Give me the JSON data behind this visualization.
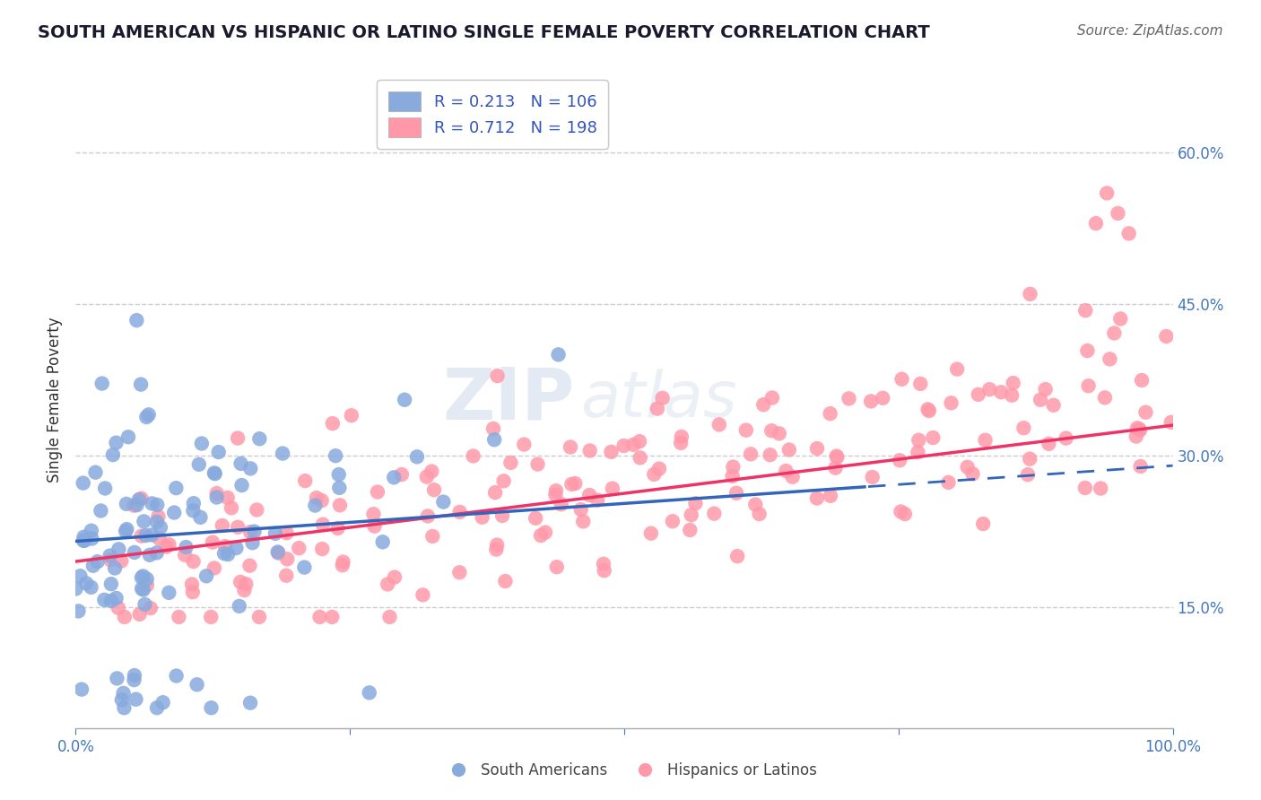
{
  "title": "SOUTH AMERICAN VS HISPANIC OR LATINO SINGLE FEMALE POVERTY CORRELATION CHART",
  "source": "Source: ZipAtlas.com",
  "ylabel": "Single Female Poverty",
  "yticks": [
    0.15,
    0.3,
    0.45,
    0.6
  ],
  "ytick_labels": [
    "15.0%",
    "30.0%",
    "45.0%",
    "60.0%"
  ],
  "xlim": [
    0.0,
    1.0
  ],
  "ylim": [
    0.03,
    0.68
  ],
  "blue_R": 0.213,
  "blue_N": 106,
  "pink_R": 0.712,
  "pink_N": 198,
  "blue_color": "#88AADD",
  "pink_color": "#FF99AA",
  "blue_line_color": "#3366BB",
  "pink_line_color": "#EE3366",
  "legend_label_blue": "South Americans",
  "legend_label_pink": "Hispanics or Latinos",
  "legend_text_color": "#3355BB",
  "watermark_zip": "ZIP",
  "watermark_atlas": "atlas",
  "background_color": "#FFFFFF",
  "grid_color": "#CCCCCC",
  "title_fontsize": 14,
  "axis_label_fontsize": 12,
  "tick_fontsize": 12,
  "source_fontsize": 11,
  "legend_fontsize": 13
}
